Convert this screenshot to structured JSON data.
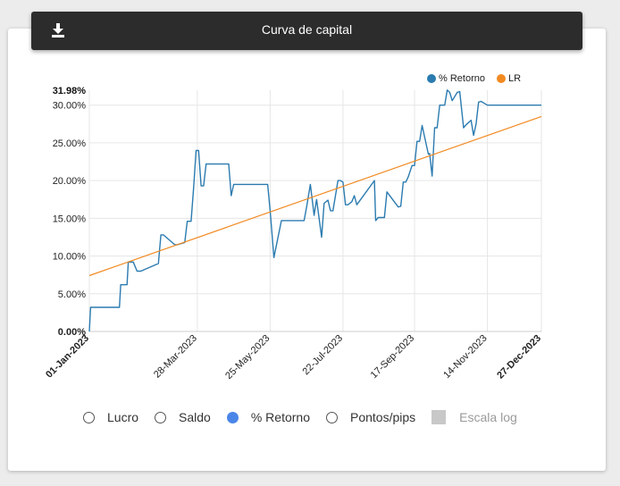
{
  "header": {
    "title": "Curva de capital",
    "download_icon": "download-icon"
  },
  "legend": [
    {
      "label": "% Retorno",
      "color": "#2b7bb0"
    },
    {
      "label": "LR",
      "color": "#f28a22"
    }
  ],
  "controls": {
    "options": [
      {
        "label": "Lucro",
        "selected": false
      },
      {
        "label": "Saldo",
        "selected": false
      },
      {
        "label": "% Retorno",
        "selected": true
      },
      {
        "label": "Pontos/pips",
        "selected": false
      }
    ],
    "log_scale": {
      "label": "Escala log",
      "checked": false,
      "enabled": false
    }
  },
  "chart_data": {
    "type": "line",
    "y_ticks": [
      "0.00%",
      "5.00%",
      "10.00%",
      "15.00%",
      "20.00%",
      "25.00%",
      "30.00%"
    ],
    "y_max_label": "31.98%",
    "x_ticks": [
      "01-Jan-2023",
      "28-Mar-2023",
      "25-May-2023",
      "22-Jul-2023",
      "17-Sep-2023",
      "14-Nov-2023",
      "27-Dec-2023"
    ],
    "x_tick_dates": [
      "2023-01-01",
      "2023-03-28",
      "2023-05-25",
      "2023-07-22",
      "2023-09-17",
      "2023-11-14",
      "2023-12-27"
    ],
    "ylim": [
      0,
      31.98
    ],
    "grid": true,
    "legend_position": "top-right",
    "series": [
      {
        "name": "% Retorno",
        "color": "#2b7bb0",
        "x": [
          "2023-01-01",
          "2023-01-02",
          "2023-01-03",
          "2023-01-25",
          "2023-01-26",
          "2023-01-31",
          "2023-02-01",
          "2023-02-05",
          "2023-02-08",
          "2023-02-11",
          "2023-02-25",
          "2023-02-27",
          "2023-03-01",
          "2023-03-10",
          "2023-03-12",
          "2023-03-18",
          "2023-03-20",
          "2023-03-23",
          "2023-03-25",
          "2023-03-27",
          "2023-03-29",
          "2023-03-31",
          "2023-04-02",
          "2023-04-04",
          "2023-04-06",
          "2023-04-22",
          "2023-04-24",
          "2023-04-26",
          "2023-05-23",
          "2023-05-25",
          "2023-05-28",
          "2023-06-03",
          "2023-06-21",
          "2023-06-23",
          "2023-06-26",
          "2023-06-29",
          "2023-06-30",
          "2023-07-01",
          "2023-07-05",
          "2023-07-07",
          "2023-07-10",
          "2023-07-12",
          "2023-07-14",
          "2023-07-18",
          "2023-07-20",
          "2023-07-22",
          "2023-07-24",
          "2023-07-26",
          "2023-07-29",
          "2023-07-31",
          "2023-08-02",
          "2023-08-16",
          "2023-08-17",
          "2023-08-19",
          "2023-08-22",
          "2023-08-24",
          "2023-08-26",
          "2023-09-04",
          "2023-09-06",
          "2023-09-08",
          "2023-09-10",
          "2023-09-12",
          "2023-09-15",
          "2023-09-17",
          "2023-09-19",
          "2023-09-21",
          "2023-09-23",
          "2023-09-28",
          "2023-09-29",
          "2023-10-01",
          "2023-10-03",
          "2023-10-05",
          "2023-10-07",
          "2023-10-09",
          "2023-10-11",
          "2023-10-13",
          "2023-10-15",
          "2023-10-17",
          "2023-10-21",
          "2023-10-23",
          "2023-10-26",
          "2023-10-28",
          "2023-11-01",
          "2023-11-03",
          "2023-11-05",
          "2023-11-07",
          "2023-11-09",
          "2023-11-14",
          "2023-11-15",
          "2023-11-17",
          "2023-11-19",
          "2023-11-21",
          "2023-11-23",
          "2023-11-25",
          "2023-11-27",
          "2023-11-29",
          "2023-12-01",
          "2023-12-03",
          "2023-12-05",
          "2023-12-07",
          "2023-12-09",
          "2023-12-11",
          "2023-12-13",
          "2023-12-15",
          "2023-12-17",
          "2023-12-27"
        ],
        "y": [
          0.0,
          3.2,
          3.2,
          3.2,
          6.2,
          6.2,
          9.2,
          9.2,
          8.0,
          8.0,
          9.0,
          12.8,
          12.8,
          11.5,
          11.5,
          11.8,
          14.6,
          14.6,
          19.0,
          24.0,
          24.0,
          19.3,
          19.3,
          22.2,
          22.2,
          22.2,
          18.0,
          19.5,
          19.5,
          16.0,
          9.8,
          14.7,
          14.7,
          16.5,
          19.5,
          15.4,
          16.5,
          17.5,
          12.5,
          17.0,
          17.4,
          16.0,
          16.0,
          20.0,
          20.0,
          19.8,
          16.8,
          16.8,
          17.2,
          18.0,
          16.8,
          20.0,
          14.7,
          15.1,
          15.1,
          15.1,
          18.5,
          16.5,
          16.6,
          19.8,
          19.8,
          20.5,
          22.0,
          22.0,
          25.2,
          25.2,
          27.3,
          23.5,
          23.6,
          20.6,
          27.0,
          27.0,
          30.0,
          30.0,
          30.0,
          32.0,
          31.7,
          30.6,
          31.7,
          31.8,
          27.0,
          27.4,
          28.0,
          26.0,
          27.5,
          30.4,
          30.5,
          30.0,
          30.0,
          30.0,
          30.0,
          30.0,
          30.0,
          30.0,
          30.0,
          30.0,
          30.0,
          30.0,
          30.0,
          30.0,
          30.0,
          30.0,
          30.0,
          30.0,
          30.0,
          30.0
        ]
      },
      {
        "name": "LR",
        "color": "#f28a22",
        "x": [
          "2023-01-01",
          "2023-12-27"
        ],
        "y": [
          7.4,
          28.5
        ]
      }
    ]
  }
}
